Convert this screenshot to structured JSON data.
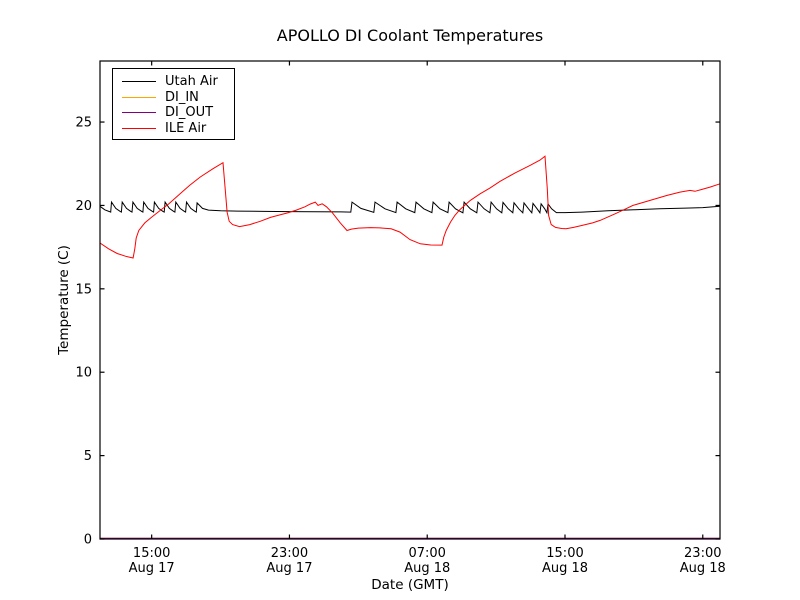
{
  "chart_data": {
    "type": "line",
    "title": "APOLLO DI Coolant Temperatures",
    "xlabel": "Date (GMT)",
    "ylabel": "Temperature (C)",
    "grid": false,
    "legend_position": "upper left",
    "tick_direction": "in",
    "x_unit": "hours since Aug 17 00:00 GMT",
    "xlim": [
      12,
      48
    ],
    "ylim": [
      0,
      28.66
    ],
    "yticks": [
      0,
      5,
      10,
      15,
      20,
      25
    ],
    "xticks": [
      {
        "hour": 15,
        "time": "15:00",
        "date": "Aug 17"
      },
      {
        "hour": 23,
        "time": "23:00",
        "date": "Aug 17"
      },
      {
        "hour": 31,
        "time": "07:00",
        "date": "Aug 18"
      },
      {
        "hour": 39,
        "time": "15:00",
        "date": "Aug 18"
      },
      {
        "hour": 47,
        "time": "23:00",
        "date": "Aug 18"
      }
    ],
    "series": [
      {
        "name": "Utah Air",
        "color": "#000000",
        "points": [
          [
            12.0,
            19.95
          ],
          [
            12.28,
            19.74
          ],
          [
            12.55,
            19.63
          ],
          [
            12.62,
            19.6
          ],
          [
            12.67,
            20.2
          ],
          [
            12.92,
            19.82
          ],
          [
            13.17,
            19.64
          ],
          [
            13.24,
            19.6
          ],
          [
            13.29,
            20.2
          ],
          [
            13.54,
            19.82
          ],
          [
            13.79,
            19.64
          ],
          [
            13.86,
            19.6
          ],
          [
            13.91,
            20.2
          ],
          [
            14.16,
            19.82
          ],
          [
            14.42,
            19.64
          ],
          [
            14.49,
            19.6
          ],
          [
            14.54,
            20.2
          ],
          [
            14.79,
            19.82
          ],
          [
            15.04,
            19.64
          ],
          [
            15.11,
            19.6
          ],
          [
            15.16,
            20.2
          ],
          [
            15.41,
            19.82
          ],
          [
            15.66,
            19.64
          ],
          [
            15.73,
            19.6
          ],
          [
            15.78,
            20.2
          ],
          [
            16.03,
            19.82
          ],
          [
            16.28,
            19.64
          ],
          [
            16.35,
            19.6
          ],
          [
            16.4,
            20.2
          ],
          [
            16.65,
            19.82
          ],
          [
            16.9,
            19.64
          ],
          [
            16.97,
            19.6
          ],
          [
            17.02,
            20.2
          ],
          [
            17.27,
            19.82
          ],
          [
            17.52,
            19.64
          ],
          [
            17.59,
            19.6
          ],
          [
            17.64,
            20.15
          ],
          [
            17.95,
            19.82
          ],
          [
            18.3,
            19.72
          ],
          [
            19.0,
            19.68
          ],
          [
            20.0,
            19.66
          ],
          [
            21.5,
            19.64
          ],
          [
            23.0,
            19.63
          ],
          [
            24.5,
            19.62
          ],
          [
            26.0,
            19.61
          ],
          [
            26.56,
            19.6
          ],
          [
            26.63,
            20.2
          ],
          [
            27.15,
            19.82
          ],
          [
            27.9,
            19.58
          ],
          [
            27.97,
            20.2
          ],
          [
            28.55,
            19.8
          ],
          [
            29.18,
            19.57
          ],
          [
            29.25,
            20.2
          ],
          [
            29.75,
            19.8
          ],
          [
            30.28,
            19.57
          ],
          [
            30.35,
            20.2
          ],
          [
            30.8,
            19.8
          ],
          [
            31.27,
            19.57
          ],
          [
            31.34,
            20.2
          ],
          [
            31.74,
            19.8
          ],
          [
            32.2,
            19.57
          ],
          [
            32.27,
            20.2
          ],
          [
            32.64,
            19.8
          ],
          [
            33.07,
            19.56
          ],
          [
            33.14,
            20.2
          ],
          [
            33.5,
            19.8
          ],
          [
            33.88,
            19.56
          ],
          [
            33.95,
            20.2
          ],
          [
            34.3,
            19.8
          ],
          [
            34.64,
            19.56
          ],
          [
            34.71,
            20.2
          ],
          [
            35.02,
            19.8
          ],
          [
            35.33,
            19.56
          ],
          [
            35.4,
            20.18
          ],
          [
            35.7,
            19.8
          ],
          [
            35.97,
            19.56
          ],
          [
            36.04,
            20.16
          ],
          [
            36.32,
            19.8
          ],
          [
            36.55,
            19.56
          ],
          [
            36.62,
            20.15
          ],
          [
            36.88,
            19.8
          ],
          [
            37.07,
            19.56
          ],
          [
            37.14,
            20.12
          ],
          [
            37.38,
            19.8
          ],
          [
            37.54,
            19.56
          ],
          [
            37.61,
            20.1
          ],
          [
            37.82,
            19.8
          ],
          [
            37.95,
            19.56
          ],
          [
            38.01,
            20.1
          ],
          [
            38.22,
            19.8
          ],
          [
            38.5,
            19.57
          ],
          [
            39.0,
            19.57
          ],
          [
            40.0,
            19.6
          ],
          [
            41.5,
            19.68
          ],
          [
            43.0,
            19.74
          ],
          [
            44.5,
            19.8
          ],
          [
            46.0,
            19.84
          ],
          [
            47.0,
            19.87
          ],
          [
            48.0,
            19.95
          ]
        ]
      },
      {
        "name": "DI_IN",
        "color": "#ffa500",
        "points": [
          [
            12,
            0
          ],
          [
            48,
            0
          ]
        ]
      },
      {
        "name": "DI_OUT",
        "color": "#800080",
        "points": [
          [
            12,
            0
          ],
          [
            48,
            0
          ]
        ]
      },
      {
        "name": "ILE Air",
        "color": "#ff0000",
        "points": [
          [
            12.0,
            17.75
          ],
          [
            12.5,
            17.4
          ],
          [
            13.0,
            17.12
          ],
          [
            13.5,
            16.95
          ],
          [
            13.92,
            16.85
          ],
          [
            14.02,
            17.4
          ],
          [
            14.1,
            18.05
          ],
          [
            14.25,
            18.5
          ],
          [
            14.6,
            18.95
          ],
          [
            15.0,
            19.3
          ],
          [
            15.5,
            19.7
          ],
          [
            16.0,
            20.1
          ],
          [
            16.65,
            20.7
          ],
          [
            17.2,
            21.2
          ],
          [
            17.81,
            21.7
          ],
          [
            18.56,
            22.2
          ],
          [
            19.14,
            22.56
          ],
          [
            19.25,
            21.2
          ],
          [
            19.38,
            19.6
          ],
          [
            19.5,
            19.05
          ],
          [
            19.7,
            18.85
          ],
          [
            20.1,
            18.73
          ],
          [
            20.7,
            18.85
          ],
          [
            21.3,
            19.05
          ],
          [
            21.9,
            19.28
          ],
          [
            22.5,
            19.45
          ],
          [
            22.9,
            19.55
          ],
          [
            23.4,
            19.72
          ],
          [
            23.9,
            19.92
          ],
          [
            24.2,
            20.08
          ],
          [
            24.5,
            20.2
          ],
          [
            24.66,
            20.0
          ],
          [
            24.9,
            20.1
          ],
          [
            25.15,
            19.92
          ],
          [
            25.5,
            19.55
          ],
          [
            25.95,
            18.95
          ],
          [
            26.34,
            18.5
          ],
          [
            26.6,
            18.58
          ],
          [
            27.0,
            18.64
          ],
          [
            27.7,
            18.67
          ],
          [
            28.26,
            18.65
          ],
          [
            28.9,
            18.6
          ],
          [
            29.42,
            18.4
          ],
          [
            30.0,
            17.95
          ],
          [
            30.6,
            17.7
          ],
          [
            31.2,
            17.63
          ],
          [
            31.86,
            17.62
          ],
          [
            31.96,
            18.1
          ],
          [
            32.1,
            18.5
          ],
          [
            32.35,
            19.0
          ],
          [
            32.61,
            19.4
          ],
          [
            32.9,
            19.75
          ],
          [
            33.5,
            20.3
          ],
          [
            34.07,
            20.7
          ],
          [
            34.65,
            21.05
          ],
          [
            35.23,
            21.45
          ],
          [
            36.1,
            21.95
          ],
          [
            36.97,
            22.4
          ],
          [
            37.55,
            22.72
          ],
          [
            37.84,
            22.95
          ],
          [
            37.97,
            21.0
          ],
          [
            38.05,
            19.4
          ],
          [
            38.2,
            18.85
          ],
          [
            38.45,
            18.68
          ],
          [
            38.8,
            18.62
          ],
          [
            39.06,
            18.6
          ],
          [
            39.5,
            18.68
          ],
          [
            40.0,
            18.8
          ],
          [
            40.6,
            18.95
          ],
          [
            41.04,
            19.1
          ],
          [
            41.91,
            19.5
          ],
          [
            42.5,
            19.78
          ],
          [
            42.95,
            20.0
          ],
          [
            43.94,
            20.3
          ],
          [
            44.93,
            20.6
          ],
          [
            45.68,
            20.8
          ],
          [
            46.26,
            20.9
          ],
          [
            46.55,
            20.85
          ],
          [
            46.9,
            20.95
          ],
          [
            47.42,
            21.1
          ],
          [
            48.0,
            21.3
          ]
        ]
      }
    ]
  }
}
